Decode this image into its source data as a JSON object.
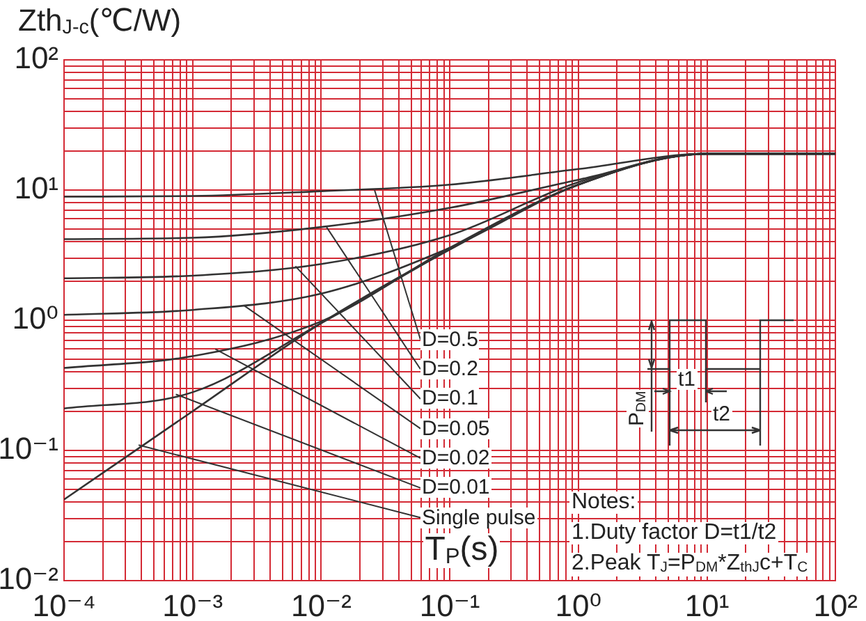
{
  "chart_data": {
    "type": "line",
    "title": "Zth$_{J-c}$(℃/W)",
    "xlabel": "T$_{P}$(s)",
    "log": "xy",
    "grid": true,
    "legend": false,
    "marker": "none",
    "line_style": "solid",
    "x": [
      0.0001,
      0.001,
      0.01,
      0.1,
      1,
      10,
      100
    ],
    "series": [
      {
        "color": "#333333",
        "values": [
          8.9,
          9,
          9.8,
          11,
          14.5,
          19,
          19
        ]
      },
      {
        "color": "#333333",
        "values": [
          4.2,
          4.3,
          5.2,
          7.3,
          12,
          19,
          19
        ]
      },
      {
        "color": "#333333",
        "values": [
          2.1,
          2.2,
          2.7,
          4.5,
          11.5,
          19,
          19
        ]
      },
      {
        "color": "#333333",
        "values": [
          1.1,
          1.2,
          1.6,
          3.6,
          11,
          19,
          19
        ]
      },
      {
        "color": "#333333",
        "values": [
          0.43,
          0.53,
          0.98,
          3.6,
          11,
          19,
          19
        ]
      },
      {
        "color": "#333333",
        "values": [
          0.21,
          0.28,
          0.95,
          3.5,
          11,
          19,
          19
        ]
      },
      {
        "color": "#333333",
        "values": [
          0.042,
          0.2,
          0.95,
          3.5,
          11,
          19,
          19
        ]
      }
    ],
    "xlim": [
      0.0001,
      100
    ],
    "ylim": [
      0.01,
      100
    ],
    "xticks": [
      {
        "value": 0.0001,
        "label": "10⁻⁴"
      },
      {
        "value": 0.0002,
        "label": null
      },
      {
        "value": 0.0003,
        "label": null
      },
      {
        "value": 0.0004,
        "label": null
      },
      {
        "value": 0.0005,
        "label": null
      },
      {
        "value": 0.0006,
        "label": null
      },
      {
        "value": 0.0007,
        "label": null
      },
      {
        "value": 0.0008,
        "label": null
      },
      {
        "value": 0.0009,
        "label": null
      },
      {
        "value": 0.001,
        "label": "10⁻³"
      },
      {
        "value": 0.002,
        "label": null
      },
      {
        "value": 0.003,
        "label": null
      },
      {
        "value": 0.004,
        "label": null
      },
      {
        "value": 0.005,
        "label": null
      },
      {
        "value": 0.006,
        "label": null
      },
      {
        "value": 0.007,
        "label": null
      },
      {
        "value": 0.008,
        "label": null
      },
      {
        "value": 0.009,
        "label": null
      },
      {
        "value": 0.01,
        "label": "10⁻²"
      },
      {
        "value": 0.02,
        "label": null
      },
      {
        "value": 0.03,
        "label": null
      },
      {
        "value": 0.04,
        "label": null
      },
      {
        "value": 0.05,
        "label": null
      },
      {
        "value": 0.06,
        "label": null
      },
      {
        "value": 0.07,
        "label": null
      },
      {
        "value": 0.08,
        "label": null
      },
      {
        "value": 0.09,
        "label": null
      },
      {
        "value": 0.1,
        "label": "10⁻¹"
      },
      {
        "value": 0.2,
        "label": null
      },
      {
        "value": 0.3,
        "label": null
      },
      {
        "value": 0.4,
        "label": null
      },
      {
        "value": 0.5,
        "label": null
      },
      {
        "value": 0.6,
        "label": null
      },
      {
        "value": 0.7,
        "label": null
      },
      {
        "value": 0.8,
        "label": null
      },
      {
        "value": 0.9,
        "label": null
      },
      {
        "value": 1,
        "label": "10⁰"
      },
      {
        "value": 2,
        "label": null
      },
      {
        "value": 3,
        "label": null
      },
      {
        "value": 4,
        "label": null
      },
      {
        "value": 5,
        "label": null
      },
      {
        "value": 6,
        "label": null
      },
      {
        "value": 7,
        "label": null
      },
      {
        "value": 8,
        "label": null
      },
      {
        "value": 9,
        "label": null
      },
      {
        "value": 10,
        "label": "10¹"
      },
      {
        "value": 20,
        "label": null
      },
      {
        "value": 30,
        "label": null
      },
      {
        "value": 40,
        "label": null
      },
      {
        "value": 50,
        "label": null
      },
      {
        "value": 60,
        "label": null
      },
      {
        "value": 70,
        "label": null
      },
      {
        "value": 80,
        "label": null
      },
      {
        "value": 90,
        "label": null
      },
      {
        "value": 100,
        "label": "10²"
      }
    ],
    "yticks": [
      {
        "value": 0.01,
        "label": "10⁻²"
      },
      {
        "value": 0.02,
        "label": null
      },
      {
        "value": 0.03,
        "label": null
      },
      {
        "value": 0.04,
        "label": null
      },
      {
        "value": 0.05,
        "label": null
      },
      {
        "value": 0.06,
        "label": null
      },
      {
        "value": 0.07,
        "label": null
      },
      {
        "value": 0.08,
        "label": null
      },
      {
        "value": 0.09,
        "label": null
      },
      {
        "value": 0.1,
        "label": "10⁻¹"
      },
      {
        "value": 0.2,
        "label": null
      },
      {
        "value": 0.3,
        "label": null
      },
      {
        "value": 0.4,
        "label": null
      },
      {
        "value": 0.5,
        "label": null
      },
      {
        "value": 0.6,
        "label": null
      },
      {
        "value": 0.7,
        "label": null
      },
      {
        "value": 0.8,
        "label": null
      },
      {
        "value": 0.9,
        "label": null
      },
      {
        "value": 1,
        "label": "10⁰"
      },
      {
        "value": 2,
        "label": null
      },
      {
        "value": 3,
        "label": null
      },
      {
        "value": 4,
        "label": null
      },
      {
        "value": 5,
        "label": null
      },
      {
        "value": 6,
        "label": null
      },
      {
        "value": 7,
        "label": null
      },
      {
        "value": 8,
        "label": null
      },
      {
        "value": 9,
        "label": null
      },
      {
        "value": 10,
        "label": "10¹"
      },
      {
        "value": 20,
        "label": null
      },
      {
        "value": 30,
        "label": null
      },
      {
        "value": 40,
        "label": null
      },
      {
        "value": 50,
        "label": null
      },
      {
        "value": 60,
        "label": null
      },
      {
        "value": 70,
        "label": null
      },
      {
        "value": 80,
        "label": null
      },
      {
        "value": 90,
        "label": null
      },
      {
        "value": 100,
        "label": "10²"
      }
    ],
    "annotations": [
      {
        "text": "D=0.5",
        "x": 0.026,
        "y": 10
      },
      {
        "text": "D=0.2",
        "x": 0.011,
        "y": 5.2
      },
      {
        "text": "D=0.1",
        "x": 0.0063,
        "y": 2.6
      },
      {
        "text": "D=0.05",
        "x": 0.0025,
        "y": 1.3
      },
      {
        "text": "D=0.02",
        "x": 0.0015,
        "y": 0.6
      },
      {
        "text": "D=0.01",
        "x": 0.00074,
        "y": 0.27
      },
      {
        "text": "Single pulse",
        "x": 0.00038,
        "y": 0.11
      },
      "Notes:",
      "1.Duty factor D=t1/t2",
      "2.Peak T$_{J}$=P$_{DM}$*Z$_{thJ}$c+T$_{C}$",
      "P$_{DM}$",
      "t1",
      "t2"
    ]
  }
}
